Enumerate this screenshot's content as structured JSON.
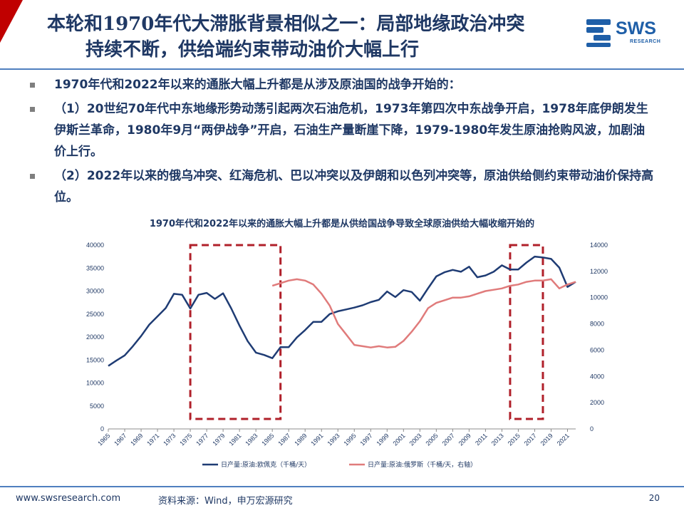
{
  "slide": {
    "title_line1": "本轮和1970年代大滞胀背景相似之一：局部地缘政治冲突",
    "title_line2": "持续不断，供给端约束带动油价大幅上行",
    "logo_text": "SWS",
    "logo_subtext": "RESEARCH",
    "bullets": [
      "1970年代和2022年以来的通胀大幅上升都是从涉及原油国的战争开始的：",
      "（1）20世纪70年代中东地缘形势动荡引起两次石油危机，1973年第四次中东战争开启，1978年底伊朗发生伊斯兰革命，1980年9月“两伊战争”开启，石油生产量断崖下降，1979-1980年发生原油抢购风波，加剧油价上行。",
      "（2）2022年以来的俄乌冲突、红海危机、巴以冲突以及伊朗和以色列冲突等，原油供给侧约束带动油价保持高位。"
    ],
    "footer_url": "www.swsresearch.com",
    "footer_source": "资料来源：Wind，申万宏源研究",
    "page_number": "20"
  },
  "colors": {
    "title": "#1f3864",
    "brand_red": "#c00000",
    "opec_line": "#1f3c74",
    "russia_line": "#e07b7b",
    "highlight_box": "#b0202a"
  },
  "chart_data": {
    "type": "line",
    "title": "1970年代和2022年以来的通胀大幅上升都是从供给国战争导致全球原油供给大幅收缩开始的",
    "x_tick_labels": [
      "1965",
      "1967",
      "1969",
      "1971",
      "1973",
      "1975",
      "1977",
      "1979",
      "1981",
      "1983",
      "1985",
      "1987",
      "1989",
      "1991",
      "1993",
      "1995",
      "1997",
      "1999",
      "2001",
      "2003",
      "2005",
      "2007",
      "2009",
      "2011",
      "2013",
      "2015",
      "2017",
      "2019",
      "2021"
    ],
    "y_left": {
      "range": [
        0,
        40000
      ],
      "ticks": [
        "0",
        "5000",
        "10000",
        "15000",
        "20000",
        "25000",
        "30000",
        "35000",
        "40000"
      ]
    },
    "y_right": {
      "range": [
        0,
        14000
      ],
      "ticks": [
        "0",
        "2000",
        "4000",
        "6000",
        "8000",
        "10000",
        "12000",
        "14000"
      ]
    },
    "series": [
      {
        "name": "日产量:原油:欧佩克（千桶/天）",
        "axis": "left",
        "x": [
          1965,
          1966,
          1967,
          1968,
          1969,
          1970,
          1971,
          1972,
          1973,
          1974,
          1975,
          1976,
          1977,
          1978,
          1979,
          1980,
          1981,
          1982,
          1983,
          1984,
          1985,
          1986,
          1987,
          1988,
          1989,
          1990,
          1991,
          1992,
          1993,
          1994,
          1995,
          1996,
          1997,
          1998,
          1999,
          2000,
          2001,
          2002,
          2003,
          2004,
          2005,
          2006,
          2007,
          2008,
          2009,
          2010,
          2011,
          2012,
          2013,
          2014,
          2015,
          2016,
          2017,
          2018,
          2019,
          2020,
          2021,
          2022
        ],
        "values": [
          13700,
          14900,
          16000,
          18000,
          20200,
          22700,
          24500,
          26300,
          29400,
          29200,
          26200,
          29200,
          29600,
          28300,
          29500,
          26200,
          22500,
          19100,
          16600,
          16100,
          15400,
          17800,
          17800,
          19900,
          21500,
          23300,
          23300,
          25000,
          25600,
          26000,
          26400,
          26900,
          27600,
          28100,
          29900,
          28700,
          30200,
          29800,
          27900,
          30600,
          33200,
          34100,
          34600,
          34200,
          35300,
          33000,
          33400,
          34200,
          35600,
          34700,
          34700,
          36200,
          37500,
          37300,
          37000,
          35100,
          30900,
          32000
        ]
      },
      {
        "name": "日产量:原油:俄罗斯（千桶/天，右轴）",
        "axis": "right",
        "x": [
          1985,
          1986,
          1987,
          1988,
          1989,
          1990,
          1991,
          1992,
          1993,
          1994,
          1995,
          1996,
          1997,
          1998,
          1999,
          2000,
          2001,
          2002,
          2003,
          2004,
          2005,
          2006,
          2007,
          2008,
          2009,
          2010,
          2011,
          2012,
          2013,
          2014,
          2015,
          2016,
          2017,
          2018,
          2019,
          2020,
          2021,
          2022
        ],
        "values": [
          10900,
          11100,
          11300,
          11400,
          11300,
          11000,
          10300,
          9400,
          8000,
          7200,
          6400,
          6300,
          6200,
          6300,
          6200,
          6250,
          6700,
          7400,
          8200,
          9200,
          9600,
          9800,
          10000,
          10000,
          10100,
          10300,
          10500,
          10600,
          10700,
          10900,
          11000,
          11200,
          11300,
          11300,
          11400,
          10700,
          11000,
          11200
        ]
      }
    ],
    "highlight_periods": [
      [
        1975,
        1986
      ],
      [
        2014,
        2018
      ]
    ],
    "legend_position": "bottom",
    "grid": false
  }
}
